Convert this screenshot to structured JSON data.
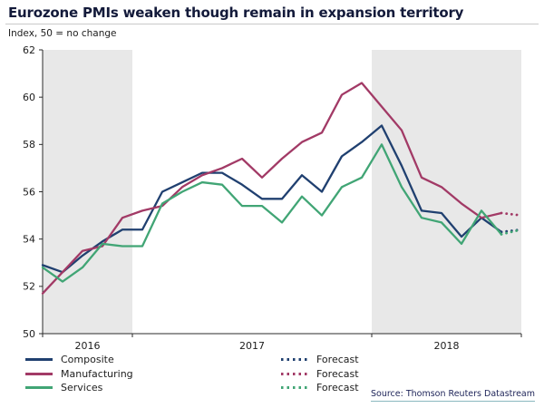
{
  "header": {
    "title": "Eurozone PMIs weaken though remain in expansion territory",
    "subtitle": "Index, 50 = no change"
  },
  "legend": {
    "forecast_label": "Forecast"
  },
  "source": "Source: Thomson Reuters Datastream",
  "chart_data": {
    "type": "line",
    "title": "Eurozone PMIs weaken though remain in expansion territory",
    "subtitle": "Index, 50 = no change",
    "ylim": [
      50,
      62
    ],
    "yticks": [
      50,
      52,
      54,
      56,
      58,
      60,
      62
    ],
    "grid": false,
    "legend_position": "bottom-left",
    "band_color": "#e8e8e8",
    "shaded_years": [
      "2016",
      "2018"
    ],
    "year_labels": [
      "2016",
      "2017",
      "2018"
    ],
    "year_boundaries": [
      4.5,
      16.5
    ],
    "x": [
      "Aug-16",
      "Sep-16",
      "Oct-16",
      "Nov-16",
      "Dec-16",
      "Jan-17",
      "Feb-17",
      "Mar-17",
      "Apr-17",
      "May-17",
      "Jun-17",
      "Jul-17",
      "Aug-17",
      "Sep-17",
      "Oct-17",
      "Nov-17",
      "Dec-17",
      "Jan-18",
      "Feb-18",
      "Mar-18",
      "Apr-18",
      "May-18",
      "Jun-18",
      "Jul-18"
    ],
    "forecast_x": "Aug-18",
    "series": [
      {
        "name": "Composite",
        "color": "#204070",
        "values": [
          52.9,
          52.6,
          53.3,
          53.9,
          54.4,
          54.4,
          56.0,
          56.4,
          56.8,
          56.8,
          56.3,
          55.7,
          55.7,
          56.7,
          56.0,
          57.5,
          58.1,
          58.8,
          57.1,
          55.2,
          55.1,
          54.1,
          54.9,
          54.3
        ],
        "forecast": 54.4
      },
      {
        "name": "Manufacturing",
        "color": "#a23a66",
        "values": [
          51.7,
          52.6,
          53.5,
          53.7,
          54.9,
          55.2,
          55.4,
          56.2,
          56.7,
          57.0,
          57.4,
          56.6,
          57.4,
          58.1,
          58.5,
          60.1,
          60.6,
          59.6,
          58.6,
          56.6,
          56.2,
          55.5,
          54.9,
          55.1
        ],
        "forecast": 55.0
      },
      {
        "name": "Services",
        "color": "#41a575",
        "values": [
          52.8,
          52.2,
          52.8,
          53.8,
          53.7,
          53.7,
          55.5,
          56.0,
          56.4,
          56.3,
          55.4,
          55.4,
          54.7,
          55.8,
          55.0,
          56.2,
          56.6,
          58.0,
          56.2,
          54.9,
          54.7,
          53.8,
          55.2,
          54.2
        ],
        "forecast": 54.4
      }
    ]
  }
}
